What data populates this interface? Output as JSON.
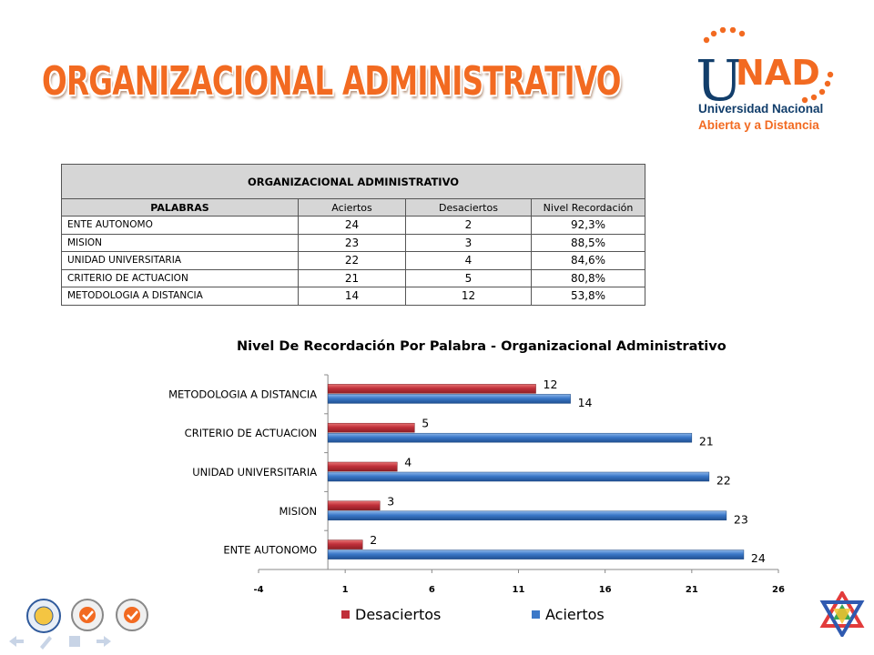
{
  "slide": {
    "title": "ORGANIZACIONAL ADMINISTRATIVO"
  },
  "logo": {
    "wordmark_u": "U",
    "wordmark_rest": "NAD",
    "line1": "Universidad Nacional",
    "line2": "Abierta y a Distancia"
  },
  "table": {
    "caption": "ORGANIZACIONAL ADMINISTRATIVO",
    "headers": [
      "PALABRAS",
      "Aciertos",
      "Desaciertos",
      "Nivel  Recordación"
    ],
    "rows": [
      {
        "palabra": "ENTE AUTONOMO",
        "aciertos": "24",
        "desaciertos": "2",
        "nivel": "92,3%"
      },
      {
        "palabra": "MISION",
        "aciertos": "23",
        "desaciertos": "3",
        "nivel": "88,5%"
      },
      {
        "palabra": "UNIDAD UNIVERSITARIA",
        "aciertos": "22",
        "desaciertos": "4",
        "nivel": "84,6%"
      },
      {
        "palabra": "CRITERIO DE ACTUACION",
        "aciertos": "21",
        "desaciertos": "5",
        "nivel": "80,8%"
      },
      {
        "palabra": "METODOLOGIA A DISTANCIA",
        "aciertos": "14",
        "desaciertos": "12",
        "nivel": "53,8%"
      }
    ]
  },
  "chart_data": {
    "type": "bar",
    "orientation": "horizontal",
    "title": "Nivel De Recordación Por Palabra  -  Organizacional  Administrativo",
    "categories": [
      "ENTE AUTONOMO",
      "MISION",
      "UNIDAD UNIVERSITARIA",
      "CRITERIO DE ACTUACION",
      "METODOLOGIA A DISTANCIA"
    ],
    "series": [
      {
        "name": "Desaciertos",
        "color": "#c0303a",
        "values": [
          2,
          3,
          4,
          5,
          12
        ]
      },
      {
        "name": "Aciertos",
        "color": "#3b78c8",
        "values": [
          24,
          23,
          22,
          21,
          14
        ]
      }
    ],
    "xlim": [
      -4,
      26
    ],
    "xticks": [
      "-4",
      "1",
      "6",
      "11",
      "16",
      "21",
      "26"
    ],
    "grid": false,
    "legend_position": "bottom"
  },
  "colors": {
    "accent_orange": "#f26a21",
    "navy": "#123e6b"
  }
}
